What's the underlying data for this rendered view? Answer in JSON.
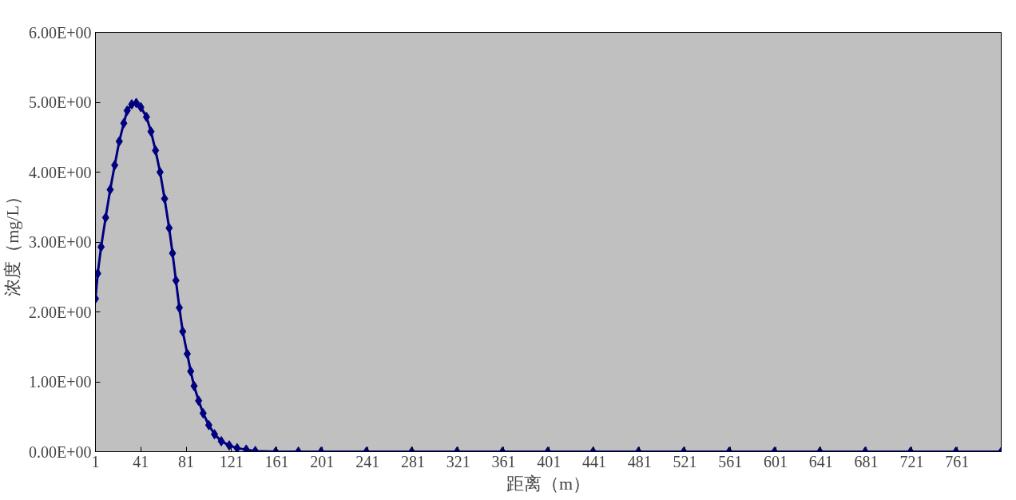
{
  "chart_data": {
    "type": "line",
    "xlabel": "距离（m）",
    "ylabel": "浓度（mg/L）",
    "x": [
      1,
      3,
      6,
      10,
      14,
      18,
      22,
      26,
      29,
      33,
      37,
      41,
      46,
      50,
      54,
      58,
      62,
      66,
      69,
      72,
      75,
      78,
      82,
      85,
      88,
      92,
      96,
      101,
      106,
      112,
      119,
      126,
      134,
      142,
      160,
      180,
      200,
      240,
      280,
      320,
      360,
      400,
      440,
      480,
      520,
      560,
      600,
      640,
      680,
      720,
      760,
      800
    ],
    "series": [
      {
        "color": "#000080",
        "values": [
          2.19,
          2.55,
          2.93,
          3.35,
          3.75,
          4.1,
          4.44,
          4.7,
          4.88,
          4.97,
          4.99,
          4.93,
          4.79,
          4.58,
          4.31,
          4.0,
          3.62,
          3.2,
          2.84,
          2.45,
          2.06,
          1.72,
          1.4,
          1.15,
          0.94,
          0.73,
          0.55,
          0.38,
          0.25,
          0.15,
          0.09,
          0.05,
          0.03,
          0.01,
          0,
          0,
          0,
          0,
          0,
          0,
          0,
          0,
          0,
          0,
          0,
          0,
          0,
          0,
          0,
          0,
          0,
          0
        ]
      }
    ],
    "xlim": [
      1,
      800
    ],
    "xticks": [
      1,
      41,
      81,
      121,
      161,
      201,
      241,
      281,
      321,
      361,
      401,
      441,
      481,
      521,
      561,
      601,
      641,
      681,
      721,
      761
    ],
    "ylim": [
      0,
      6
    ],
    "yticks": [
      {
        "value": 0,
        "label": "0.00E+00"
      },
      {
        "value": 1,
        "label": "1.00E+00"
      },
      {
        "value": 2,
        "label": "2.00E+00"
      },
      {
        "value": 3,
        "label": "3.00E+00"
      },
      {
        "value": 4,
        "label": "4.00E+00"
      },
      {
        "value": 5,
        "label": "5.00E+00"
      },
      {
        "value": 6,
        "label": "6.00E+00"
      }
    ],
    "grid": false,
    "marker": "diamond",
    "line_style": "solid"
  }
}
